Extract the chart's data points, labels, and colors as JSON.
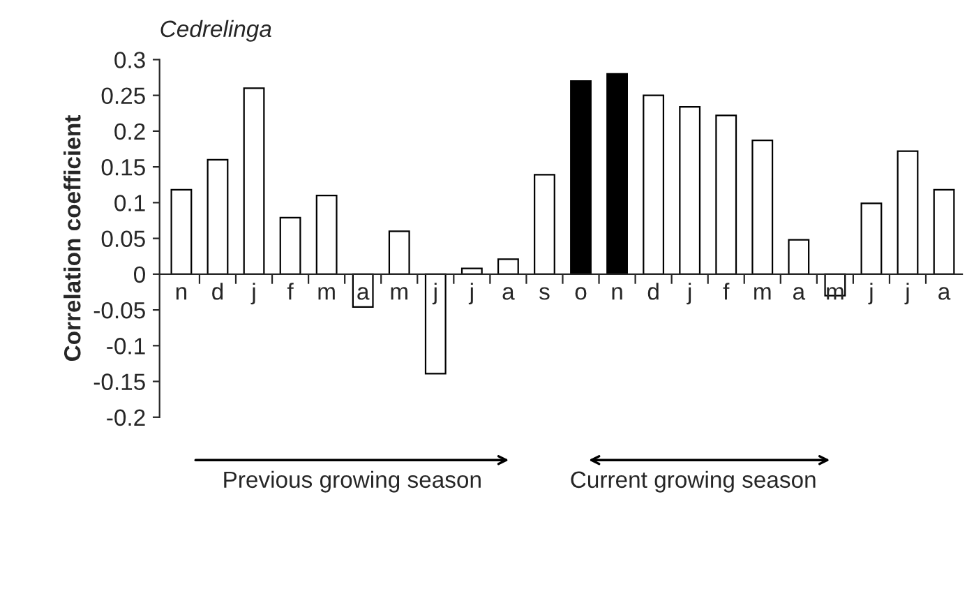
{
  "chart_data": {
    "type": "bar",
    "title": "Cedrelinga",
    "ylabel": "Correlation coefficient",
    "categories": [
      "n",
      "d",
      "j",
      "f",
      "m",
      "a",
      "m",
      "j",
      "j",
      "a",
      "s",
      "o",
      "n",
      "d",
      "j",
      "f",
      "m",
      "a",
      "m",
      "j",
      "j",
      "a"
    ],
    "values": [
      0.118,
      0.16,
      0.26,
      0.079,
      0.11,
      -0.046,
      0.06,
      -0.139,
      0.008,
      0.021,
      0.139,
      0.27,
      0.28,
      0.25,
      0.234,
      0.222,
      0.187,
      0.048,
      -0.03,
      0.099,
      0.172,
      0.118
    ],
    "colors": [
      "#ffffff",
      "#ffffff",
      "#ffffff",
      "#ffffff",
      "#ffffff",
      "#ffffff",
      "#ffffff",
      "#ffffff",
      "#ffffff",
      "#ffffff",
      "#ffffff",
      "#000000",
      "#000000",
      "#ffffff",
      "#ffffff",
      "#ffffff",
      "#ffffff",
      "#ffffff",
      "#ffffff",
      "#ffffff",
      "#ffffff",
      "#ffffff"
    ],
    "ylim": [
      -0.2,
      0.3
    ],
    "yticks": [
      -0.2,
      -0.15,
      -0.1,
      -0.05,
      0,
      0.05,
      0.1,
      0.15,
      0.2,
      0.25,
      0.3
    ],
    "grid": false,
    "legend": false,
    "annotations": [
      "Previous growing season",
      "Current growing season"
    ]
  }
}
